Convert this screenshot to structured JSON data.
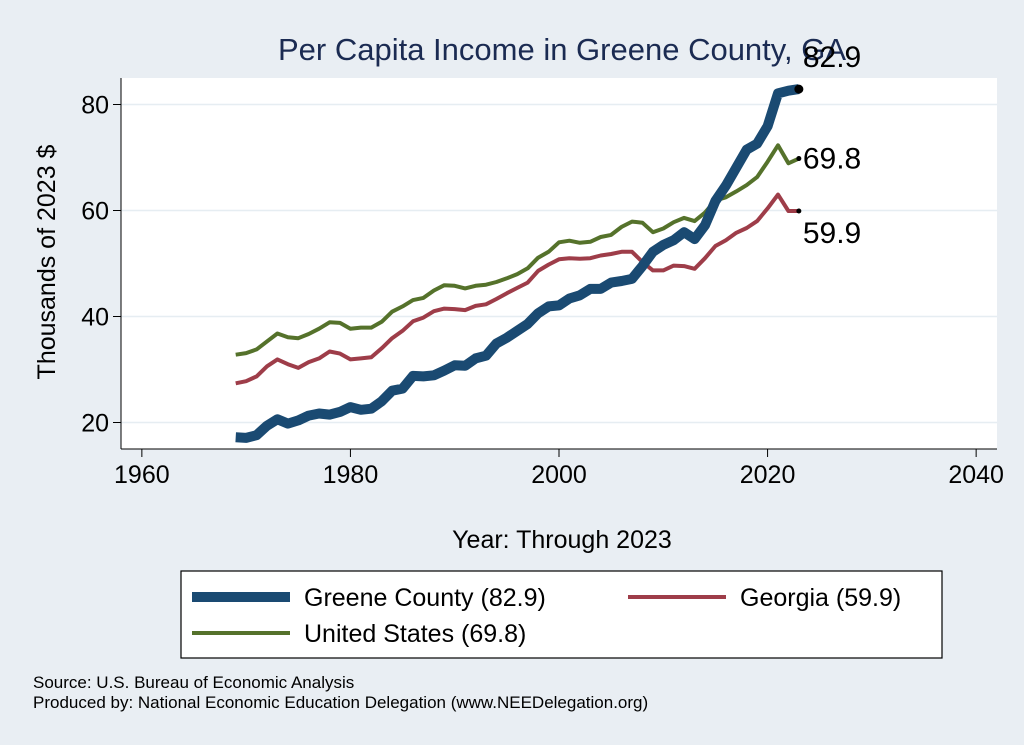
{
  "chart_data": {
    "type": "line",
    "title": "Per Capita Income in Greene County, GA",
    "xlabel": "Year: Through 2023",
    "ylabel": "Thousands of 2023 $",
    "xlim": [
      1958,
      2042
    ],
    "ylim": [
      15,
      85
    ],
    "x_ticks": [
      1960,
      1980,
      2000,
      2020,
      2040
    ],
    "y_ticks": [
      20,
      40,
      60,
      80
    ],
    "grid": true,
    "legend_position": "bottom",
    "x": [
      1969,
      1970,
      1971,
      1972,
      1973,
      1974,
      1975,
      1976,
      1977,
      1978,
      1979,
      1980,
      1981,
      1982,
      1983,
      1984,
      1985,
      1986,
      1987,
      1988,
      1989,
      1990,
      1991,
      1992,
      1993,
      1994,
      1995,
      1996,
      1997,
      1998,
      1999,
      2000,
      2001,
      2002,
      2003,
      2004,
      2005,
      2006,
      2007,
      2008,
      2009,
      2010,
      2011,
      2012,
      2013,
      2014,
      2015,
      2016,
      2017,
      2018,
      2019,
      2020,
      2021,
      2022,
      2023
    ],
    "series": [
      {
        "name": "Greene County (82.9)",
        "color": "#1a4a72",
        "end_label": "82.9",
        "values": [
          17.2,
          17.1,
          17.6,
          19.4,
          20.6,
          19.8,
          20.4,
          21.3,
          21.7,
          21.5,
          22.0,
          22.9,
          22.4,
          22.6,
          24.0,
          26.0,
          26.4,
          28.8,
          28.7,
          28.9,
          29.8,
          30.8,
          30.7,
          32.1,
          32.6,
          34.9,
          36.0,
          37.3,
          38.6,
          40.6,
          41.9,
          42.1,
          43.4,
          44.0,
          45.2,
          45.2,
          46.4,
          46.7,
          47.1,
          49.5,
          52.2,
          53.5,
          54.4,
          55.9,
          54.6,
          57.2,
          61.8,
          64.7,
          68.1,
          71.5,
          72.6,
          75.9,
          82.1,
          82.6,
          82.9
        ]
      },
      {
        "name": "Georgia (59.9)",
        "color": "#9e3d49",
        "end_label": "59.9",
        "values": [
          27.4,
          27.8,
          28.7,
          30.6,
          31.9,
          31.0,
          30.3,
          31.4,
          32.1,
          33.4,
          33.0,
          31.9,
          32.1,
          32.3,
          34.0,
          35.9,
          37.3,
          39.1,
          39.8,
          41.0,
          41.5,
          41.4,
          41.2,
          42.0,
          42.3,
          43.3,
          44.4,
          45.4,
          46.4,
          48.6,
          49.8,
          50.8,
          51.0,
          50.9,
          51.0,
          51.5,
          51.8,
          52.2,
          52.2,
          50.3,
          48.7,
          48.7,
          49.6,
          49.5,
          49.0,
          51.0,
          53.3,
          54.4,
          55.8,
          56.7,
          58.0,
          60.4,
          63.0,
          59.9,
          59.9
        ]
      },
      {
        "name": "United States (69.8)",
        "color": "#55722b",
        "end_label": "69.8",
        "values": [
          32.8,
          33.1,
          33.8,
          35.3,
          36.8,
          36.1,
          35.9,
          36.7,
          37.7,
          38.9,
          38.8,
          37.7,
          37.9,
          37.9,
          39.0,
          40.9,
          41.9,
          43.1,
          43.5,
          44.9,
          45.9,
          45.8,
          45.3,
          45.8,
          46.0,
          46.5,
          47.2,
          48.0,
          49.1,
          51.1,
          52.2,
          54.0,
          54.3,
          53.9,
          54.1,
          55.0,
          55.4,
          56.9,
          57.9,
          57.7,
          55.9,
          56.6,
          57.8,
          58.6,
          58.0,
          59.6,
          61.9,
          62.5,
          63.6,
          64.8,
          66.3,
          69.2,
          72.3,
          68.9,
          69.8
        ]
      }
    ]
  },
  "legend": {
    "items": [
      {
        "label": "Greene County (82.9)",
        "color": "#1a4a72"
      },
      {
        "label": "Georgia (59.9)",
        "color": "#9e3d49"
      },
      {
        "label": "United States (69.8)",
        "color": "#55722b"
      }
    ]
  },
  "footer": {
    "source": "Source: U.S. Bureau of Economic Analysis",
    "produced_by": "Produced by: National Economic Education Delegation (www.NEEDelegation.org)"
  }
}
